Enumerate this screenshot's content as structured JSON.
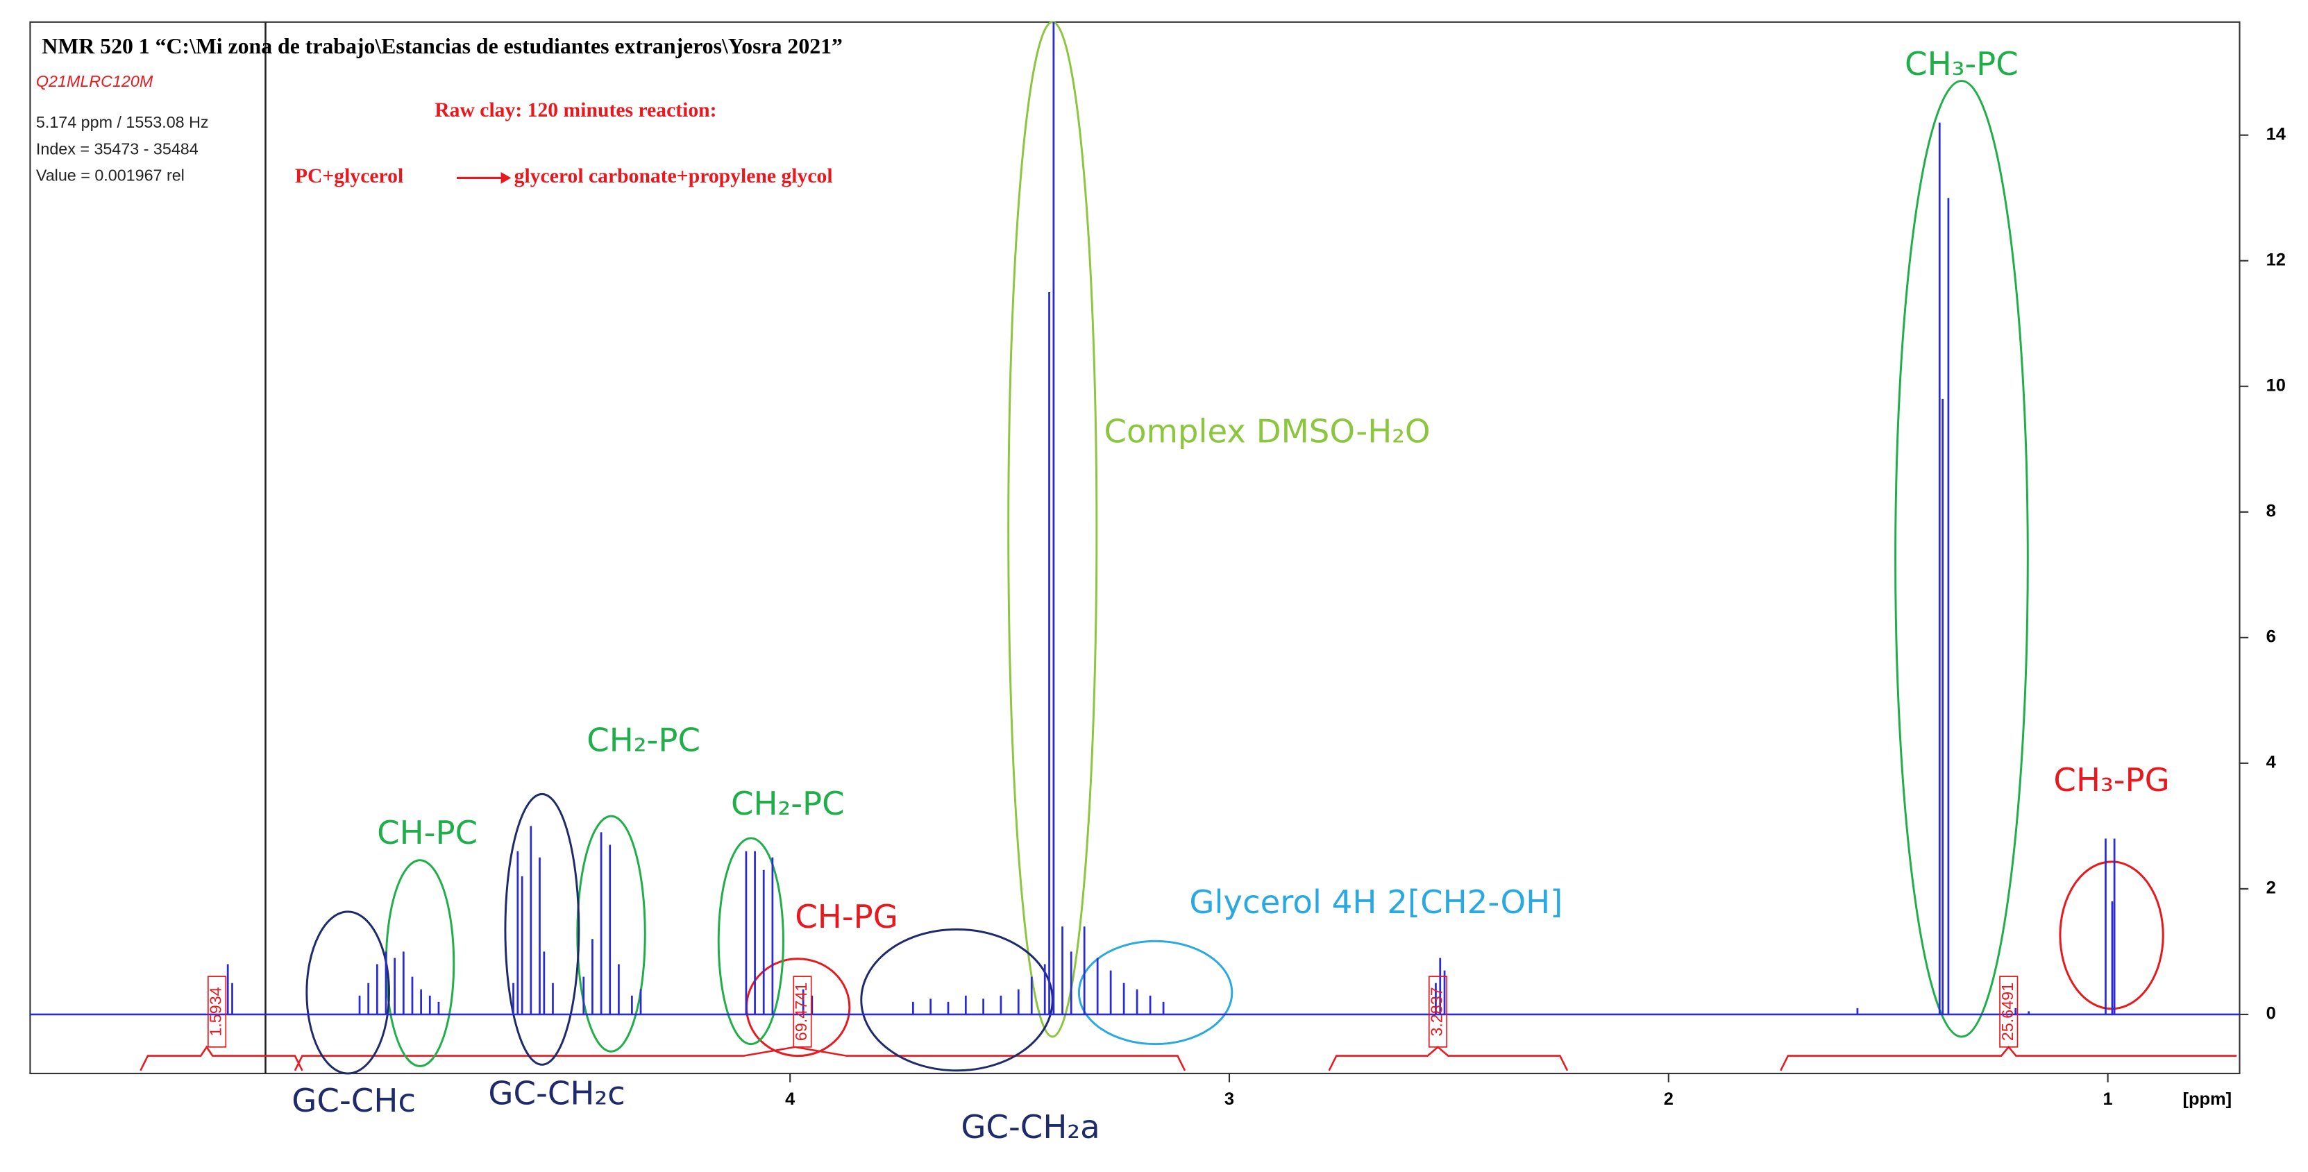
{
  "chart_data": {
    "type": "stick",
    "title": "NMR 520 1 “C:\\Mi zona de trabajo\\Estancias de estudiantes extranjeros\\Yosra 2021”",
    "info": [
      "Q21MLRC120M",
      "5.174 ppm / 1553.08 Hz",
      "Index = 35473 - 35484",
      "Value = 0.001967   rel"
    ],
    "reaction": [
      "Raw clay: 120 minutes reaction:",
      "PC+glycerol",
      "glycerol carbonate+propylene glycol"
    ],
    "x_label": "[ppm]",
    "xlim": [
      5.73,
      0.7
    ],
    "xticks": [
      4,
      3,
      2,
      1
    ],
    "ylim": [
      -0.94,
      15.8
    ],
    "yticks": [
      0,
      2,
      4,
      6,
      8,
      10,
      12,
      14
    ],
    "color": "#2b2bd6",
    "x": [
      5.28,
      5.27,
      4.98,
      4.96,
      4.94,
      4.92,
      4.9,
      4.88,
      4.86,
      4.84,
      4.82,
      4.8,
      4.63,
      4.62,
      4.61,
      4.59,
      4.57,
      4.56,
      4.54,
      4.47,
      4.45,
      4.43,
      4.41,
      4.39,
      4.36,
      4.34,
      4.1,
      4.08,
      4.06,
      4.04,
      3.97,
      3.95,
      3.72,
      3.68,
      3.64,
      3.6,
      3.56,
      3.52,
      3.48,
      3.45,
      3.42,
      3.41,
      3.4,
      3.38,
      3.36,
      3.33,
      3.3,
      3.27,
      3.24,
      3.21,
      3.18,
      3.15,
      2.53,
      2.52,
      2.51,
      1.57,
      1.383,
      1.376,
      1.363,
      1.21,
      1.18,
      1.005,
      0.99,
      0.985
    ],
    "values": [
      0.8,
      0.5,
      0.3,
      0.5,
      0.8,
      1.0,
      0.9,
      1.0,
      0.6,
      0.4,
      0.3,
      0.2,
      0.5,
      2.6,
      2.2,
      3.0,
      2.5,
      1.0,
      0.5,
      0.6,
      1.2,
      2.9,
      2.7,
      0.8,
      0.3,
      0.4,
      2.6,
      2.6,
      2.3,
      2.5,
      0.4,
      0.3,
      0.2,
      0.25,
      0.2,
      0.3,
      0.25,
      0.3,
      0.4,
      0.6,
      0.8,
      11.5,
      15.8,
      1.4,
      1.0,
      1.4,
      0.9,
      0.7,
      0.5,
      0.4,
      0.3,
      0.2,
      0.5,
      0.9,
      0.7,
      0.1,
      14.2,
      9.8,
      13.0,
      0.1,
      0.05,
      2.8,
      1.8,
      2.8
    ],
    "integral_labels": [
      "1.5934",
      "69.4741",
      "3.2837",
      "25.6491"
    ],
    "annotations": [
      {
        "text": "CH₃-PC",
        "color": "#1fae4a"
      },
      {
        "text": "CH₃-PG",
        "color": "#e8191e"
      },
      {
        "text": "Complex DMSO-H₂O",
        "color": "#8cc63f"
      },
      {
        "text": "Glycerol 4H 2[CH2-OH]",
        "color": "#29a9e0"
      },
      {
        "text": "CH-PG",
        "color": "#e8191e"
      },
      {
        "text": "CH₂-PC",
        "color": "#1fae4a"
      },
      {
        "text": "CH₂-PC",
        "color": "#1fae4a"
      },
      {
        "text": "CH-PC",
        "color": "#1fae4a"
      },
      {
        "text": "GC-CH₂c",
        "color": "#1f2a6b"
      },
      {
        "text": "GC-CHc",
        "color": "#1f2a6b"
      },
      {
        "text": "GC-CH₂a",
        "color": "#1f2a6b"
      }
    ]
  }
}
